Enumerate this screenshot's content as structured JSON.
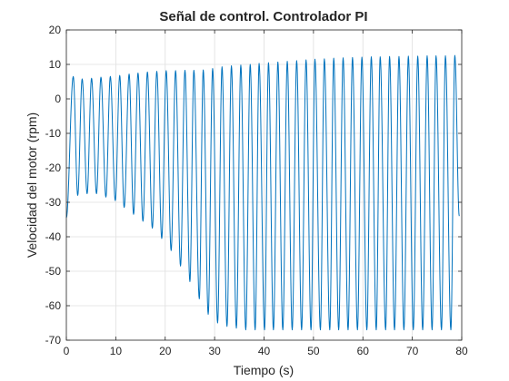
{
  "chart_data": {
    "type": "line",
    "title": "Señal de control. Controlador PI",
    "xlabel": "Tiempo (s)",
    "ylabel": "Velocidad del motor (rpm)",
    "xlim": [
      0,
      80
    ],
    "ylim": [
      -70,
      20
    ],
    "xticks": [
      0,
      10,
      20,
      30,
      40,
      50,
      60,
      70,
      80
    ],
    "yticks": [
      -70,
      -60,
      -50,
      -40,
      -30,
      -20,
      -10,
      0,
      10,
      20
    ],
    "grid": true,
    "legend": "none",
    "series": [
      {
        "color": "#0072BD",
        "period": 1.9,
        "peaks": [
          [
            1.4,
            6.5
          ],
          [
            3.2,
            5.8
          ],
          [
            5.1,
            6.0
          ],
          [
            7.0,
            6.3
          ],
          [
            8.9,
            6.5
          ],
          [
            10.8,
            6.8
          ],
          [
            12.7,
            7.2
          ],
          [
            14.5,
            7.5
          ],
          [
            16.4,
            7.8
          ],
          [
            18.3,
            8.0
          ],
          [
            20.2,
            8.2
          ],
          [
            22.1,
            8.2
          ],
          [
            24.0,
            8.3
          ],
          [
            25.8,
            8.3
          ],
          [
            27.7,
            8.4
          ],
          [
            29.6,
            8.8
          ],
          [
            31.5,
            9.3
          ],
          [
            33.4,
            9.6
          ],
          [
            35.3,
            9.8
          ],
          [
            37.2,
            10.0
          ],
          [
            39.0,
            10.3
          ],
          [
            40.9,
            10.5
          ],
          [
            42.8,
            10.7
          ],
          [
            44.7,
            10.9
          ],
          [
            46.6,
            11.1
          ],
          [
            48.5,
            11.3
          ],
          [
            50.3,
            11.5
          ],
          [
            52.2,
            11.6
          ],
          [
            54.1,
            11.8
          ],
          [
            56.0,
            11.9
          ],
          [
            57.9,
            12.0
          ],
          [
            59.8,
            12.1
          ],
          [
            61.7,
            12.2
          ],
          [
            63.5,
            12.2
          ],
          [
            65.4,
            12.3
          ],
          [
            67.3,
            12.3
          ],
          [
            69.2,
            12.4
          ],
          [
            71.1,
            12.4
          ],
          [
            73.0,
            12.5
          ],
          [
            74.8,
            12.5
          ],
          [
            76.7,
            12.5
          ],
          [
            78.6,
            12.6
          ]
        ],
        "troughs": [
          [
            0.0,
            -34.5
          ],
          [
            2.3,
            -28.0
          ],
          [
            4.2,
            -27.5
          ],
          [
            6.1,
            -27.5
          ],
          [
            8.0,
            -28.5
          ],
          [
            9.9,
            -29.5
          ],
          [
            11.7,
            -31.5
          ],
          [
            13.6,
            -33.5
          ],
          [
            15.5,
            -35.5
          ],
          [
            17.4,
            -37.5
          ],
          [
            19.3,
            -40.5
          ],
          [
            21.2,
            -44.0
          ],
          [
            23.1,
            -48.5
          ],
          [
            25.0,
            -53.0
          ],
          [
            26.9,
            -58.0
          ],
          [
            28.7,
            -62.5
          ],
          [
            30.6,
            -65.0
          ],
          [
            32.5,
            -66.0
          ],
          [
            34.4,
            -66.5
          ],
          [
            36.3,
            -67.0
          ],
          [
            38.2,
            -67.0
          ],
          [
            40.1,
            -67.0
          ],
          [
            41.9,
            -67.0
          ],
          [
            43.8,
            -67.0
          ],
          [
            45.7,
            -67.0
          ],
          [
            47.6,
            -67.0
          ],
          [
            49.5,
            -67.0
          ],
          [
            51.4,
            -67.0
          ],
          [
            53.3,
            -67.0
          ],
          [
            55.1,
            -67.0
          ],
          [
            57.0,
            -67.0
          ],
          [
            58.9,
            -67.0
          ],
          [
            60.8,
            -67.0
          ],
          [
            62.7,
            -67.0
          ],
          [
            64.6,
            -67.0
          ],
          [
            66.4,
            -67.0
          ],
          [
            68.3,
            -67.0
          ],
          [
            70.2,
            -67.0
          ],
          [
            72.1,
            -67.0
          ],
          [
            74.0,
            -67.0
          ],
          [
            75.9,
            -67.0
          ],
          [
            77.8,
            -67.0
          ]
        ],
        "end": [
          79.5,
          -34.0
        ]
      }
    ]
  }
}
